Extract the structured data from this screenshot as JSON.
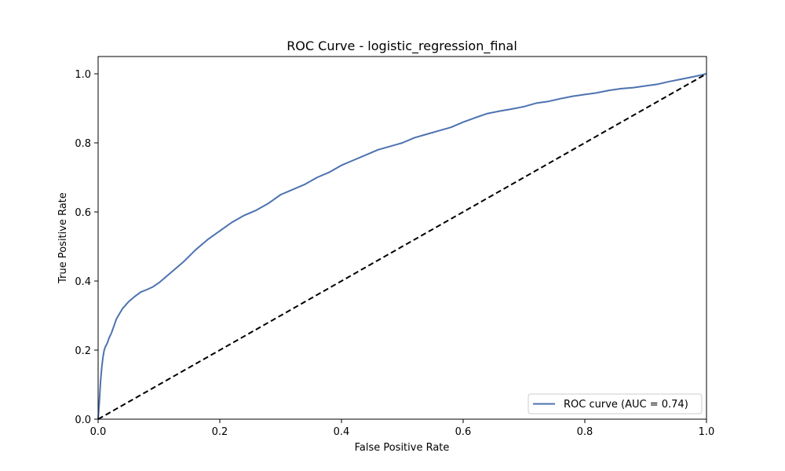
{
  "chart_data": {
    "type": "line",
    "title": "ROC Curve - logistic_regression_final",
    "xlabel": "False Positive Rate",
    "ylabel": "True Positive Rate",
    "xlim": [
      0.0,
      1.0
    ],
    "ylim": [
      0.0,
      1.05
    ],
    "xticks": [
      0.0,
      0.2,
      0.4,
      0.6,
      0.8,
      1.0
    ],
    "yticks": [
      0.0,
      0.2,
      0.4,
      0.6,
      0.8,
      1.0
    ],
    "xtick_labels": [
      "0.0",
      "0.2",
      "0.4",
      "0.6",
      "0.8",
      "1.0"
    ],
    "ytick_labels": [
      "0.0",
      "0.2",
      "0.4",
      "0.6",
      "0.8",
      "1.0"
    ],
    "grid": false,
    "legend_position": "lower-right",
    "series": [
      {
        "name": "ROC curve (AUC = 0.74)",
        "color": "#4c72b0",
        "style": "solid",
        "x": [
          0.0,
          0.002,
          0.004,
          0.006,
          0.008,
          0.01,
          0.012,
          0.015,
          0.018,
          0.022,
          0.026,
          0.03,
          0.035,
          0.04,
          0.045,
          0.05,
          0.06,
          0.07,
          0.08,
          0.09,
          0.1,
          0.12,
          0.14,
          0.16,
          0.18,
          0.2,
          0.22,
          0.24,
          0.26,
          0.28,
          0.3,
          0.32,
          0.34,
          0.36,
          0.38,
          0.4,
          0.42,
          0.44,
          0.46,
          0.48,
          0.5,
          0.52,
          0.54,
          0.56,
          0.58,
          0.6,
          0.62,
          0.64,
          0.66,
          0.68,
          0.7,
          0.72,
          0.74,
          0.76,
          0.78,
          0.8,
          0.82,
          0.84,
          0.86,
          0.88,
          0.9,
          0.92,
          0.94,
          0.96,
          0.98,
          1.0
        ],
        "y": [
          0.0,
          0.05,
          0.11,
          0.15,
          0.18,
          0.2,
          0.21,
          0.22,
          0.235,
          0.25,
          0.27,
          0.29,
          0.305,
          0.32,
          0.33,
          0.34,
          0.355,
          0.368,
          0.375,
          0.383,
          0.395,
          0.425,
          0.455,
          0.49,
          0.52,
          0.545,
          0.57,
          0.59,
          0.605,
          0.625,
          0.65,
          0.665,
          0.68,
          0.7,
          0.715,
          0.735,
          0.75,
          0.765,
          0.78,
          0.79,
          0.8,
          0.815,
          0.825,
          0.835,
          0.845,
          0.86,
          0.873,
          0.885,
          0.892,
          0.898,
          0.905,
          0.915,
          0.92,
          0.928,
          0.935,
          0.94,
          0.945,
          0.952,
          0.957,
          0.96,
          0.965,
          0.97,
          0.978,
          0.985,
          0.992,
          1.0
        ]
      },
      {
        "name": "",
        "color": "#000000",
        "style": "dashed",
        "x": [
          0.0,
          1.0
        ],
        "y": [
          0.0,
          1.0
        ]
      }
    ]
  }
}
